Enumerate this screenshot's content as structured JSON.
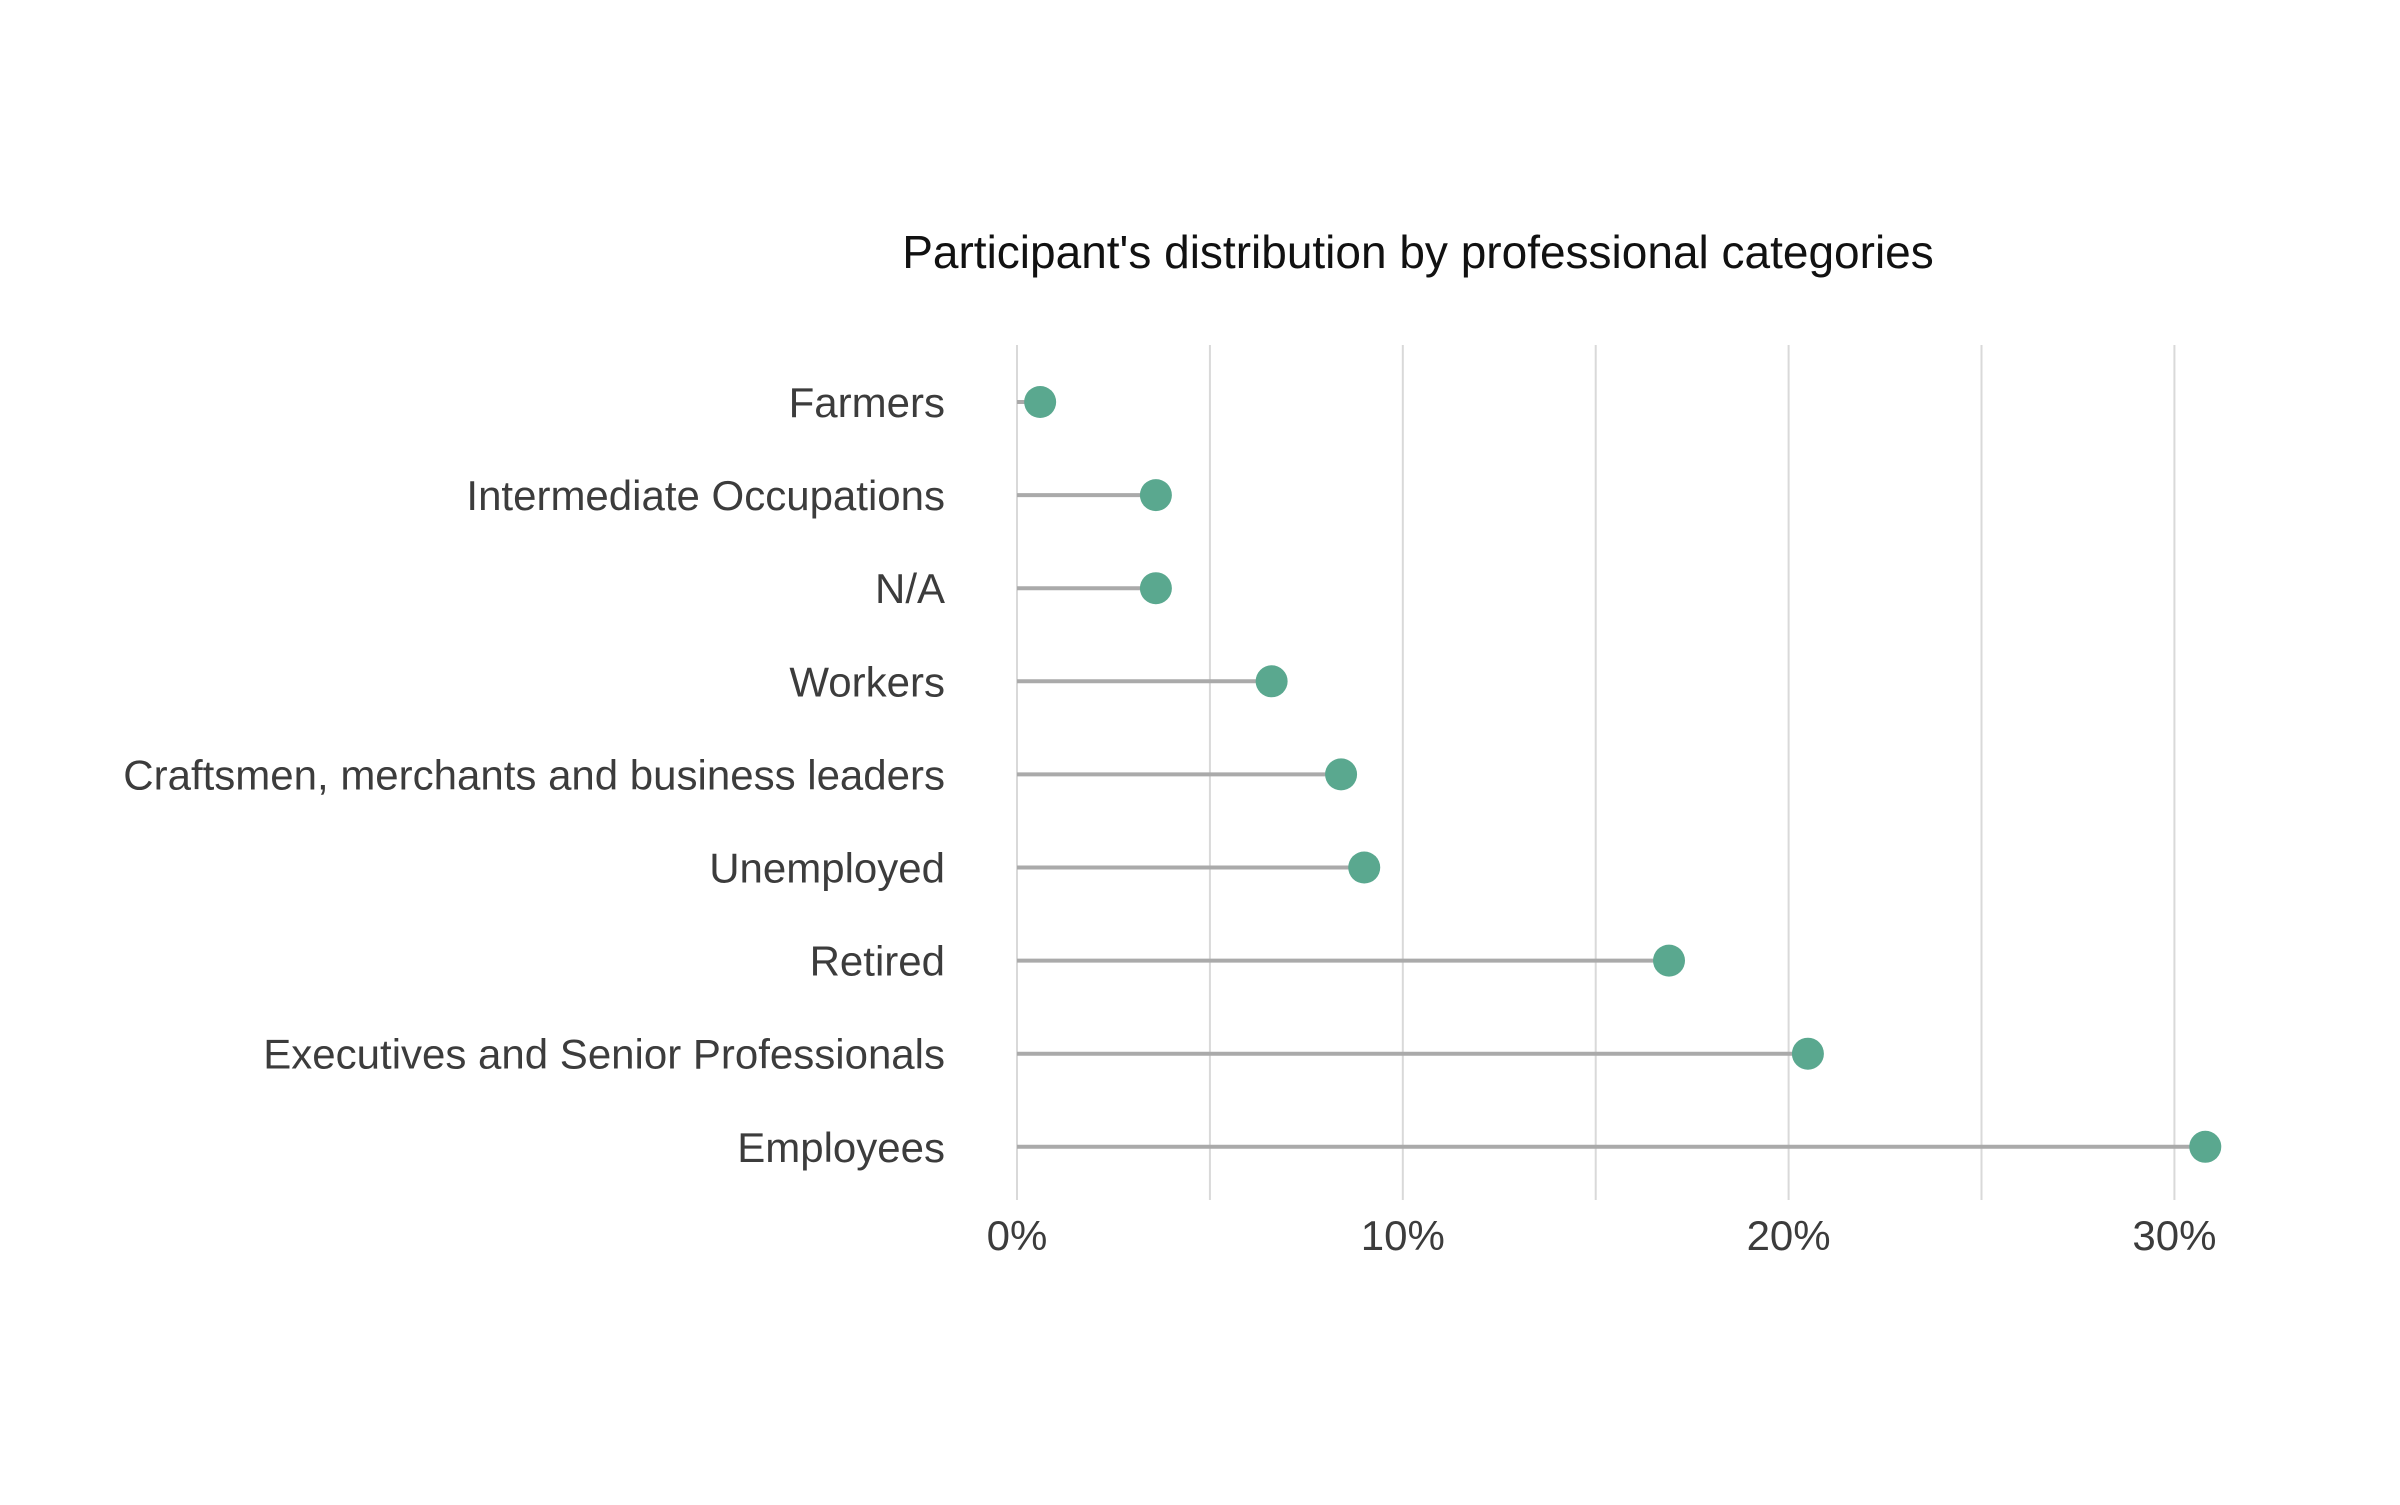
{
  "chart_data": {
    "type": "lollipop",
    "title": "Participant's distribution by professional categories",
    "xlabel": "",
    "ylabel": "",
    "categories": [
      "Farmers",
      "Intermediate Occupations",
      "N/A",
      "Workers",
      "Craftsmen, merchants and business leaders",
      "Unemployed",
      "Retired",
      "Executives and Senior Professionals",
      "Employees"
    ],
    "values": [
      0.6,
      3.6,
      3.6,
      6.6,
      8.4,
      9.0,
      16.9,
      20.5,
      30.8
    ],
    "value_unit": "%",
    "xlim": [
      0,
      31
    ],
    "x_ticks": [
      0,
      10,
      20,
      30
    ],
    "x_tick_labels": [
      "0%",
      "10%",
      "20%",
      "30%"
    ],
    "minor_gridlines": [
      5,
      15,
      25
    ],
    "grid": true,
    "legend": "none",
    "colors": {
      "point": "#5aa88f",
      "stem": "#aaaaaa",
      "grid": "#d9d9d9",
      "text": "#3c3c3c",
      "title": "#111111"
    }
  }
}
